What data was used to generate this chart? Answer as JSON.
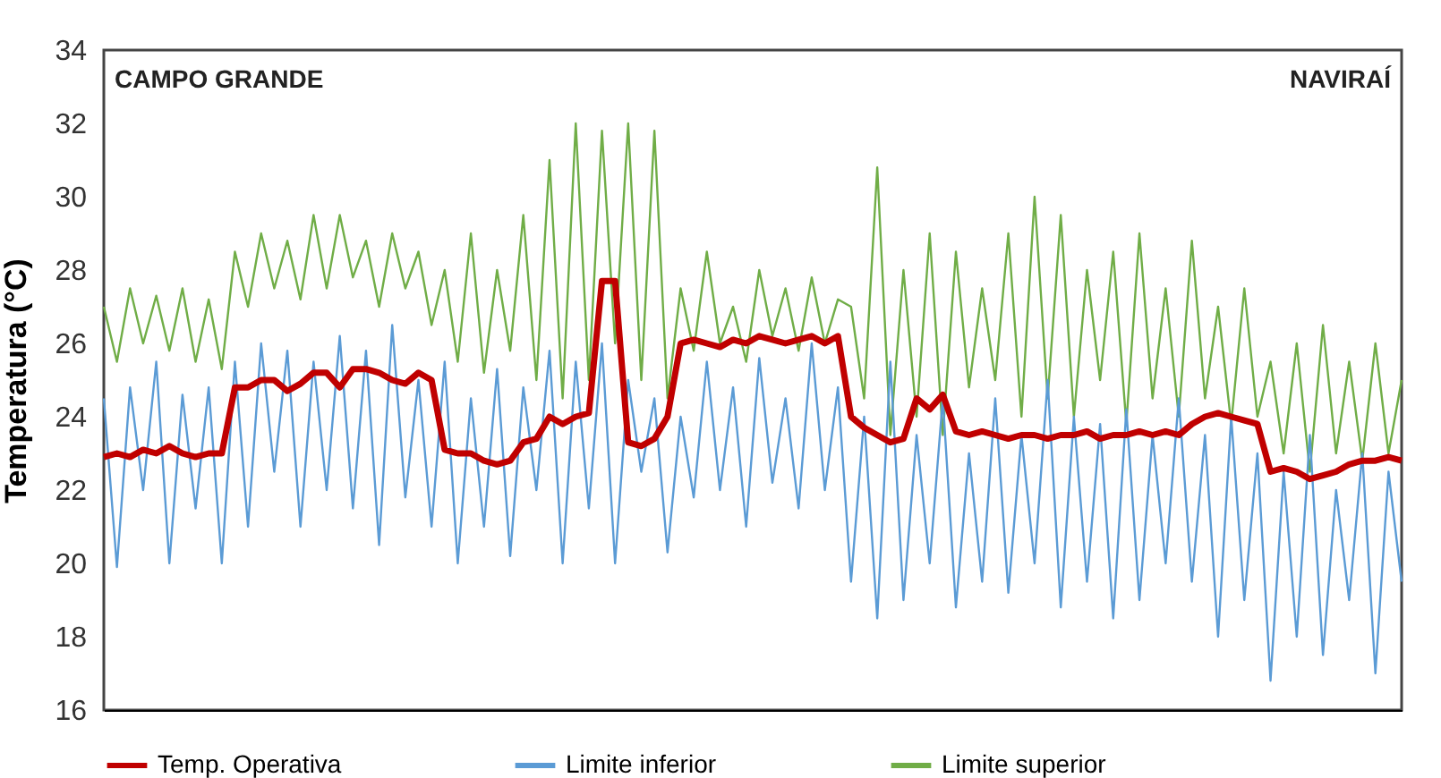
{
  "chart_data": {
    "type": "line",
    "ylabel": "Temperatura (°C)",
    "categories": [
      null,
      null,
      null,
      null,
      null,
      null,
      null,
      null,
      null,
      null,
      null,
      null,
      null,
      null,
      null,
      null,
      null,
      null,
      null,
      null,
      null,
      null,
      null,
      null,
      null,
      null,
      null,
      null,
      null,
      null,
      null,
      null,
      null,
      null,
      null,
      null,
      null,
      null,
      null,
      null,
      null,
      null,
      null,
      null,
      null,
      null,
      null,
      null,
      null,
      null,
      null,
      null,
      null,
      null,
      null,
      null,
      null,
      null,
      null,
      null,
      null,
      null,
      null,
      null,
      null,
      null,
      null,
      null,
      null,
      null,
      null,
      null,
      null,
      null,
      null,
      null,
      null,
      null,
      null,
      null,
      null,
      null,
      null,
      null,
      null,
      null,
      null,
      null,
      null,
      null,
      null,
      null,
      null,
      null,
      null,
      null,
      null,
      null,
      null,
      null
    ],
    "ylim": [
      16,
      34
    ],
    "yticks": [
      16,
      18,
      20,
      22,
      24,
      26,
      28,
      30,
      32,
      34
    ],
    "tick_labels": "y",
    "grid": false,
    "legend": "bottom",
    "line_style": "solid",
    "annotations": [
      "CAMPO GRANDE",
      "NAVIRAÍ"
    ],
    "series": [
      {
        "name": "Temp. Operativa",
        "color": "#c00000",
        "values": [
          22.9,
          23.0,
          22.9,
          23.1,
          23.0,
          23.2,
          23.0,
          22.9,
          23.0,
          23.0,
          24.8,
          24.8,
          25.0,
          25.0,
          24.7,
          24.9,
          25.2,
          25.2,
          24.8,
          25.3,
          25.3,
          25.2,
          25.0,
          24.9,
          25.2,
          25.0,
          23.1,
          23.0,
          23.0,
          22.8,
          22.7,
          22.8,
          23.3,
          23.4,
          24.0,
          23.8,
          24.0,
          24.1,
          27.7,
          27.7,
          23.3,
          23.2,
          23.4,
          24.0,
          26.0,
          26.1,
          26.0,
          25.9,
          26.1,
          26.0,
          26.2,
          26.1,
          26.0,
          26.1,
          26.2,
          26.0,
          26.2,
          24.0,
          23.7,
          23.5,
          23.3,
          23.4,
          24.5,
          24.2,
          24.6,
          23.6,
          23.5,
          23.6,
          23.5,
          23.4,
          23.5,
          23.5,
          23.4,
          23.5,
          23.5,
          23.6,
          23.4,
          23.5,
          23.5,
          23.6,
          23.5,
          23.6,
          23.5,
          23.8,
          24.0,
          24.1,
          24.0,
          23.9,
          23.8,
          22.5,
          22.6,
          22.5,
          22.3,
          22.4,
          22.5,
          22.7,
          22.8,
          22.8,
          22.9,
          22.8
        ]
      },
      {
        "name": "Limite inferior",
        "color": "#5b9bd5",
        "values": [
          24.5,
          19.9,
          24.8,
          22.0,
          25.5,
          20.0,
          24.6,
          21.5,
          24.8,
          20.0,
          25.5,
          21.0,
          26.0,
          22.5,
          25.8,
          21.0,
          25.5,
          22.0,
          26.2,
          21.5,
          25.8,
          20.5,
          26.5,
          21.8,
          25.0,
          21.0,
          25.5,
          20.0,
          24.5,
          21.0,
          25.3,
          20.2,
          24.8,
          22.0,
          25.8,
          20.0,
          25.5,
          21.5,
          26.0,
          20.0,
          25.0,
          22.5,
          24.5,
          20.3,
          24.0,
          21.8,
          25.5,
          22.0,
          24.8,
          21.0,
          25.6,
          22.2,
          24.5,
          21.5,
          26.0,
          22.0,
          24.8,
          19.5,
          24.0,
          18.5,
          25.5,
          19.0,
          23.5,
          20.0,
          24.5,
          18.8,
          23.0,
          19.5,
          24.5,
          19.2,
          23.5,
          20.0,
          25.0,
          18.8,
          24.0,
          19.5,
          23.8,
          18.5,
          24.2,
          19.0,
          23.5,
          20.0,
          24.5,
          19.5,
          23.5,
          18.0,
          24.0,
          19.0,
          23.0,
          16.8,
          22.5,
          18.0,
          23.5,
          17.5,
          22.0,
          19.0,
          23.0,
          17.0,
          22.5,
          19.5
        ]
      },
      {
        "name": "Limite superior",
        "color": "#70ad47",
        "values": [
          27.0,
          25.5,
          27.5,
          26.0,
          27.3,
          25.8,
          27.5,
          25.5,
          27.2,
          25.3,
          28.5,
          27.0,
          29.0,
          27.5,
          28.8,
          27.2,
          29.5,
          27.5,
          29.5,
          27.8,
          28.8,
          27.0,
          29.0,
          27.5,
          28.5,
          26.5,
          28.0,
          25.5,
          29.0,
          25.2,
          28.0,
          25.8,
          29.5,
          25.0,
          31.0,
          24.5,
          32.0,
          25.0,
          31.8,
          26.0,
          32.0,
          25.0,
          31.8,
          24.5,
          27.5,
          25.8,
          28.5,
          26.0,
          27.0,
          25.5,
          28.0,
          26.2,
          27.5,
          25.8,
          27.8,
          26.0,
          27.2,
          27.0,
          24.5,
          30.8,
          23.5,
          28.0,
          24.0,
          29.0,
          23.5,
          28.5,
          24.8,
          27.5,
          25.0,
          29.0,
          24.0,
          30.0,
          24.5,
          29.5,
          24.0,
          28.0,
          25.0,
          28.5,
          23.8,
          29.0,
          24.5,
          27.5,
          24.0,
          28.8,
          24.5,
          27.0,
          23.8,
          27.5,
          24.0,
          25.5,
          23.0,
          26.0,
          22.5,
          26.5,
          23.0,
          25.5,
          22.8,
          26.0,
          23.0,
          25.0
        ]
      }
    ]
  }
}
